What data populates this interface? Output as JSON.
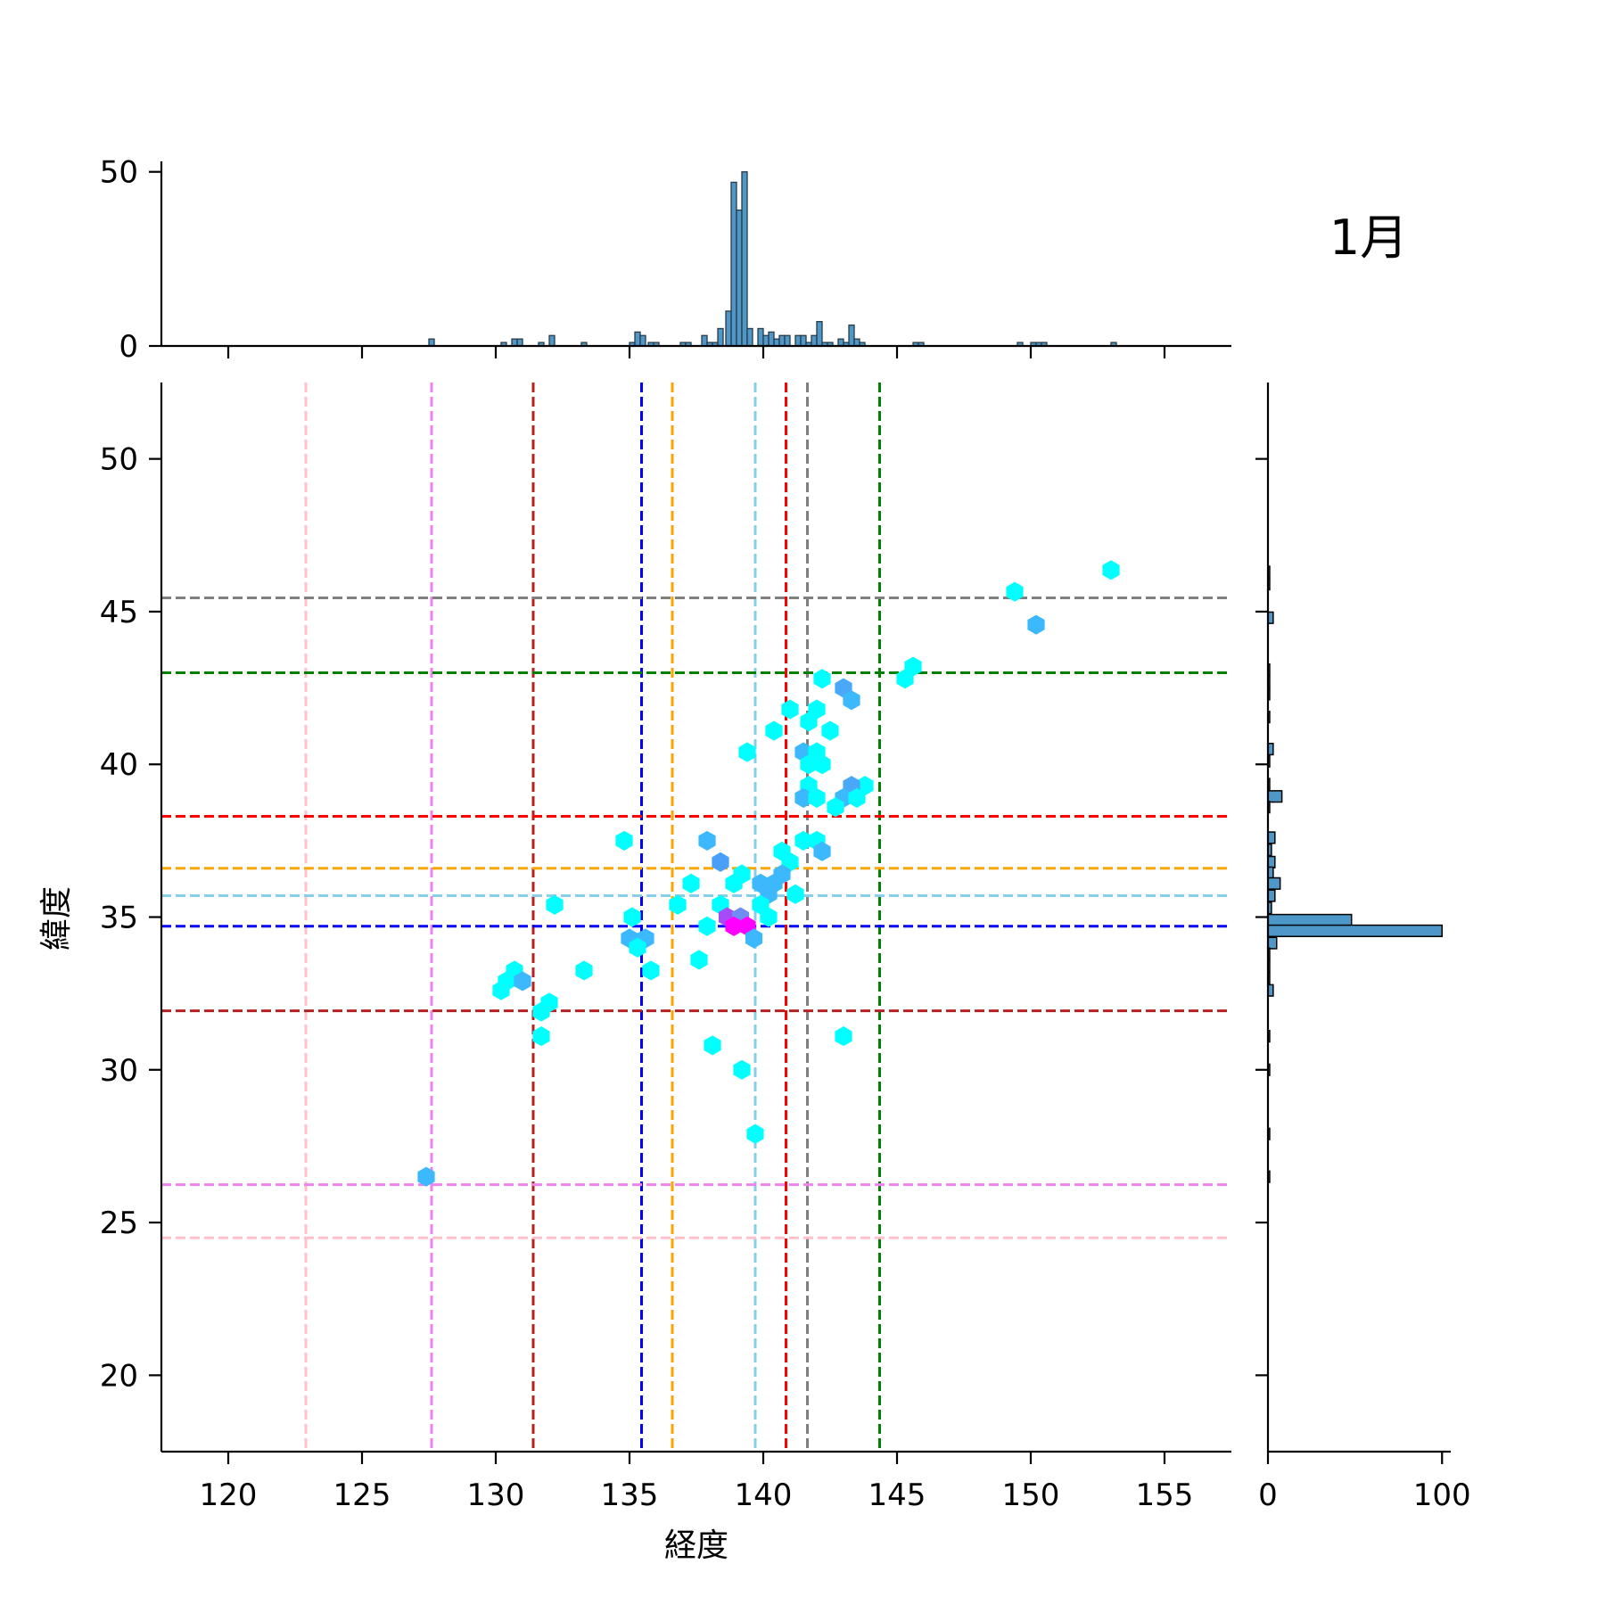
{
  "chart_data": {
    "type": "hexbin-jointplot",
    "title": "1月",
    "xlabel": "経度",
    "ylabel": "緯度",
    "xlim": [
      117.5,
      157.5
    ],
    "ylim": [
      17.5,
      52.5
    ],
    "xticks": [
      120,
      125,
      130,
      135,
      140,
      145,
      150,
      155
    ],
    "yticks": [
      20,
      25,
      30,
      35,
      40,
      45,
      50
    ],
    "top_hist": {
      "yticks": [
        0,
        50
      ],
      "ylim": [
        0,
        53
      ],
      "bin_width": 0.2,
      "color": "#4e97c9",
      "bins": [
        [
          127.5,
          2
        ],
        [
          130.2,
          1
        ],
        [
          130.6,
          2
        ],
        [
          130.8,
          2
        ],
        [
          131.6,
          1
        ],
        [
          132.0,
          3
        ],
        [
          133.2,
          1
        ],
        [
          135.0,
          1
        ],
        [
          135.2,
          4
        ],
        [
          135.4,
          3
        ],
        [
          135.7,
          1
        ],
        [
          135.9,
          1
        ],
        [
          136.9,
          1
        ],
        [
          137.1,
          1
        ],
        [
          137.7,
          3
        ],
        [
          137.9,
          1
        ],
        [
          138.1,
          1
        ],
        [
          138.3,
          5
        ],
        [
          138.6,
          10
        ],
        [
          138.8,
          47
        ],
        [
          139.0,
          39
        ],
        [
          139.2,
          50
        ],
        [
          139.4,
          5
        ],
        [
          139.8,
          5
        ],
        [
          140.0,
          3
        ],
        [
          140.2,
          4
        ],
        [
          140.4,
          2
        ],
        [
          140.6,
          3
        ],
        [
          140.8,
          3
        ],
        [
          141.2,
          3
        ],
        [
          141.4,
          3
        ],
        [
          141.6,
          1
        ],
        [
          141.8,
          3
        ],
        [
          142.0,
          7
        ],
        [
          142.2,
          1
        ],
        [
          142.4,
          1
        ],
        [
          142.8,
          2
        ],
        [
          143.0,
          1
        ],
        [
          143.2,
          6
        ],
        [
          143.4,
          2
        ],
        [
          143.6,
          1
        ],
        [
          145.6,
          1
        ],
        [
          145.8,
          1
        ],
        [
          149.5,
          1
        ],
        [
          150.0,
          1
        ],
        [
          150.2,
          1
        ],
        [
          150.4,
          1
        ],
        [
          153.0,
          1
        ]
      ]
    },
    "right_hist": {
      "xticks": [
        0,
        100
      ],
      "xlim": [
        0,
        105
      ],
      "bin_width": 0.37,
      "color": "#4e97c9",
      "bins": [
        [
          46.3,
          1
        ],
        [
          45.9,
          1
        ],
        [
          44.8,
          3
        ],
        [
          43.1,
          1
        ],
        [
          42.7,
          1
        ],
        [
          42.3,
          1
        ],
        [
          41.55,
          1
        ],
        [
          40.5,
          3
        ],
        [
          40.1,
          1
        ],
        [
          39.35,
          1
        ],
        [
          38.95,
          8
        ],
        [
          38.6,
          1
        ],
        [
          37.6,
          4
        ],
        [
          37.2,
          2
        ],
        [
          36.8,
          4
        ],
        [
          36.45,
          3
        ],
        [
          36.1,
          7
        ],
        [
          35.7,
          4
        ],
        [
          35.3,
          2
        ],
        [
          34.9,
          48
        ],
        [
          34.55,
          100
        ],
        [
          34.15,
          5
        ],
        [
          33.8,
          1
        ],
        [
          33.4,
          1
        ],
        [
          33.0,
          1
        ],
        [
          32.6,
          3
        ],
        [
          31.1,
          1
        ],
        [
          30.0,
          1
        ],
        [
          27.9,
          1
        ],
        [
          26.5,
          1
        ]
      ]
    },
    "vlines": [
      {
        "x": 122.9,
        "color": "#ffc0cb"
      },
      {
        "x": 127.6,
        "color": "#ee82ee"
      },
      {
        "x": 131.4,
        "color": "#b22222"
      },
      {
        "x": 135.45,
        "color": "#0000ff"
      },
      {
        "x": 136.6,
        "color": "#ffa500"
      },
      {
        "x": 139.7,
        "color": "#87ceeb"
      },
      {
        "x": 140.85,
        "color": "#ff0000"
      },
      {
        "x": 141.65,
        "color": "#808080"
      },
      {
        "x": 144.35,
        "color": "#008000"
      }
    ],
    "hlines": [
      {
        "y": 45.45,
        "color": "#808080"
      },
      {
        "y": 43.0,
        "color": "#008000"
      },
      {
        "y": 38.3,
        "color": "#ff0000"
      },
      {
        "y": 36.6,
        "color": "#ffa500"
      },
      {
        "y": 35.7,
        "color": "#87ceeb"
      },
      {
        "y": 34.7,
        "color": "#0000ff"
      },
      {
        "y": 31.93,
        "color": "#b22222"
      },
      {
        "y": 26.24,
        "color": "#ee82ee"
      },
      {
        "y": 24.5,
        "color": "#ffc0cb"
      }
    ],
    "hexbins": [
      [
        153.0,
        46.36,
        "#00ffff"
      ],
      [
        149.4,
        45.65,
        "#00ffff"
      ],
      [
        150.2,
        44.57,
        "#3cb8fc"
      ],
      [
        145.6,
        43.2,
        "#00ffff"
      ],
      [
        145.3,
        42.8,
        "#00ffff"
      ],
      [
        142.2,
        42.8,
        "#00ffff"
      ],
      [
        143.0,
        42.5,
        "#4aa8f8"
      ],
      [
        143.3,
        42.1,
        "#3cb8fc"
      ],
      [
        141.0,
        41.8,
        "#00ffff"
      ],
      [
        142.0,
        41.8,
        "#00ffff"
      ],
      [
        141.7,
        41.4,
        "#00ffff"
      ],
      [
        140.4,
        41.1,
        "#00ffff"
      ],
      [
        142.5,
        41.1,
        "#00ffff"
      ],
      [
        139.4,
        40.4,
        "#00ffff"
      ],
      [
        141.5,
        40.4,
        "#3cb8fc"
      ],
      [
        142.0,
        40.4,
        "#00ffff"
      ],
      [
        141.7,
        40.0,
        "#00ffff"
      ],
      [
        142.2,
        40.0,
        "#00ffff"
      ],
      [
        143.8,
        39.3,
        "#00ffff"
      ],
      [
        143.3,
        39.3,
        "#4aa8f8"
      ],
      [
        141.7,
        39.3,
        "#00ffff"
      ],
      [
        141.5,
        38.9,
        "#3cb8fc"
      ],
      [
        142.0,
        38.9,
        "#00ffff"
      ],
      [
        143.0,
        38.9,
        "#3cb8fc"
      ],
      [
        143.5,
        38.9,
        "#00ffff"
      ],
      [
        142.7,
        38.6,
        "#00ffff"
      ],
      [
        134.8,
        37.5,
        "#00ffff"
      ],
      [
        137.9,
        37.5,
        "#3cb8fc"
      ],
      [
        141.5,
        37.5,
        "#00ffff"
      ],
      [
        142.0,
        37.5,
        "#00ffff"
      ],
      [
        142.2,
        37.15,
        "#3cb8fc"
      ],
      [
        140.7,
        37.15,
        "#00ffff"
      ],
      [
        138.4,
        36.8,
        "#4aa0f8"
      ],
      [
        141.0,
        36.8,
        "#00ffff"
      ],
      [
        139.2,
        36.4,
        "#00ffff"
      ],
      [
        140.7,
        36.4,
        "#3cb8fc"
      ],
      [
        137.3,
        36.1,
        "#00ffff"
      ],
      [
        138.9,
        36.1,
        "#00ffff"
      ],
      [
        139.9,
        36.1,
        "#3cb8fc"
      ],
      [
        140.4,
        36.1,
        "#3cb8fc"
      ],
      [
        140.2,
        35.75,
        "#3cb8fc"
      ],
      [
        141.2,
        35.75,
        "#00ffff"
      ],
      [
        132.2,
        35.4,
        "#00ffff"
      ],
      [
        136.8,
        35.4,
        "#00ffff"
      ],
      [
        138.4,
        35.4,
        "#00ffff"
      ],
      [
        139.9,
        35.4,
        "#00ffff"
      ],
      [
        135.1,
        35.0,
        "#00ffff"
      ],
      [
        140.2,
        35.0,
        "#00ffff"
      ],
      [
        138.65,
        35.0,
        "#a64cf6"
      ],
      [
        139.15,
        35.0,
        "#6f8cf0"
      ],
      [
        138.9,
        34.7,
        "#ff00ff"
      ],
      [
        139.4,
        34.7,
        "#ff00ff"
      ],
      [
        137.9,
        34.7,
        "#00ffff"
      ],
      [
        139.65,
        34.3,
        "#3cb8fc"
      ],
      [
        135.0,
        34.3,
        "#3cb8fc"
      ],
      [
        135.6,
        34.3,
        "#3cb8fc"
      ],
      [
        135.3,
        34.0,
        "#00ffff"
      ],
      [
        135.8,
        33.25,
        "#00ffff"
      ],
      [
        133.3,
        33.25,
        "#00ffff"
      ],
      [
        137.6,
        33.6,
        "#00ffff"
      ],
      [
        130.7,
        33.25,
        "#00ffff"
      ],
      [
        130.4,
        32.9,
        "#00ffff"
      ],
      [
        131.0,
        32.9,
        "#3cb8fc"
      ],
      [
        130.2,
        32.6,
        "#00ffff"
      ],
      [
        132.0,
        32.2,
        "#00ffff"
      ],
      [
        131.7,
        31.9,
        "#00ffff"
      ],
      [
        131.7,
        31.1,
        "#00ffff"
      ],
      [
        143.0,
        31.1,
        "#00ffff"
      ],
      [
        138.1,
        30.8,
        "#00ffff"
      ],
      [
        139.2,
        30.0,
        "#00ffff"
      ],
      [
        139.7,
        27.9,
        "#00ffff"
      ],
      [
        127.4,
        26.5,
        "#3cb8fc"
      ]
    ]
  }
}
